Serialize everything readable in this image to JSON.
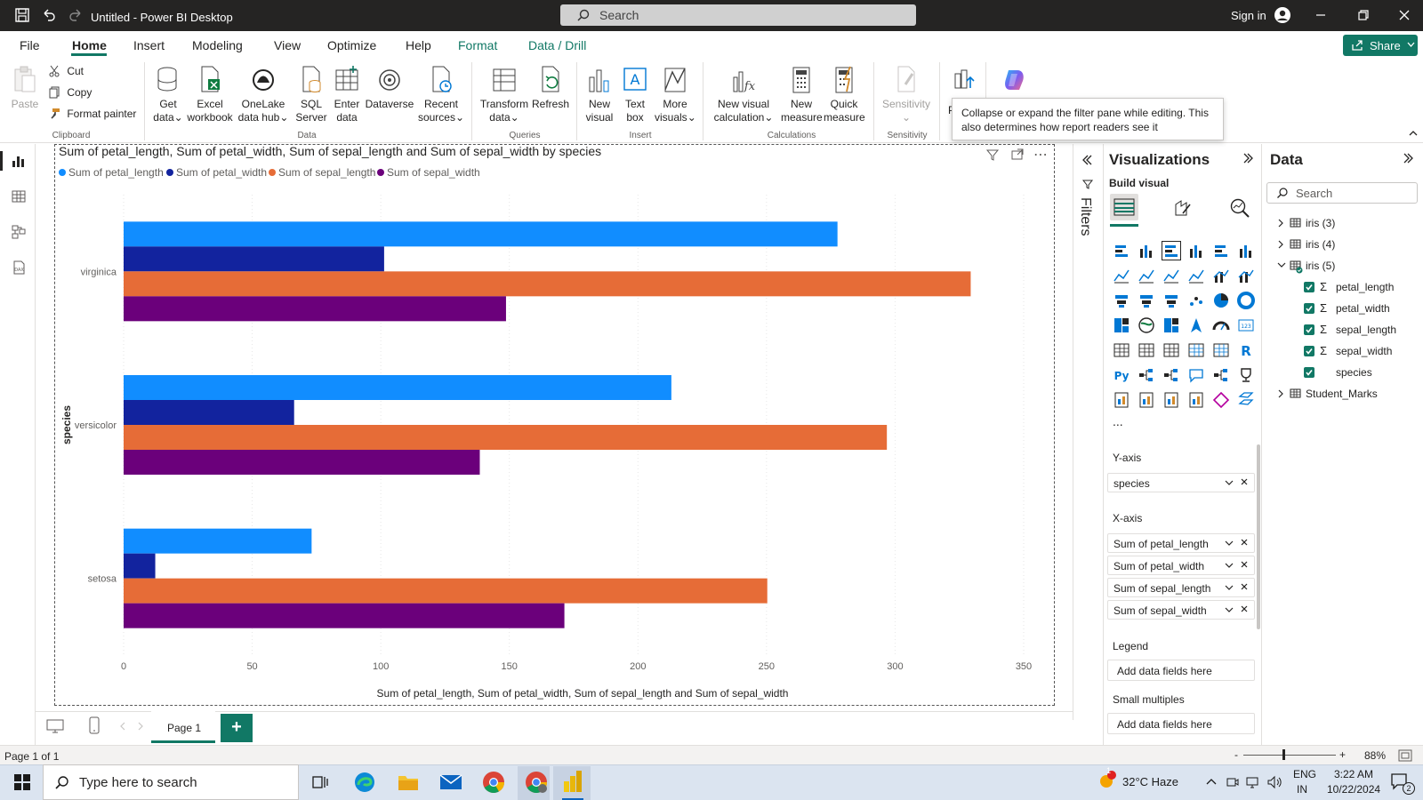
{
  "window": {
    "title": "Untitled - Power BI Desktop",
    "search_placeholder": "Search",
    "sign_in": "Sign in"
  },
  "tabs": {
    "file": "File",
    "home": "Home",
    "insert": "Insert",
    "modeling": "Modeling",
    "view": "View",
    "optimize": "Optimize",
    "help": "Help",
    "format": "Format",
    "data_drill": "Data / Drill",
    "share": "Share"
  },
  "ribbon": {
    "paste": "Paste",
    "cut": "Cut",
    "copy": "Copy",
    "format_painter": "Format painter",
    "group_clipboard": "Clipboard",
    "get_data": [
      "Get",
      "data"
    ],
    "excel": [
      "Excel",
      "workbook"
    ],
    "onelake": [
      "OneLake",
      "data hub"
    ],
    "sql": [
      "SQL",
      "Server"
    ],
    "enter_data": [
      "Enter",
      "data"
    ],
    "dataverse": "Dataverse",
    "recent": [
      "Recent",
      "sources"
    ],
    "group_data": "Data",
    "transform": [
      "Transform",
      "data"
    ],
    "refresh": "Refresh",
    "group_queries": "Queries",
    "new_visual": [
      "New",
      "visual"
    ],
    "text_box": [
      "Text",
      "box"
    ],
    "more_visuals": [
      "More",
      "visuals"
    ],
    "group_insert": "Insert",
    "new_visual_calc": [
      "New visual",
      "calculation"
    ],
    "new_measure": [
      "New",
      "measure"
    ],
    "quick_measure": [
      "Quick",
      "measure"
    ],
    "group_calculations": "Calculations",
    "sensitivity": "Sensitivity",
    "group_sensitivity": "Sensitivity",
    "publish_letter": "P"
  },
  "tooltip": {
    "line1": "Collapse or expand the filter pane while editing. This",
    "line2": "also determines how report readers see it"
  },
  "visual": {
    "title": "Sum of petal_length, Sum of petal_width, Sum of sepal_length and Sum of sepal_width by species",
    "legend": [
      {
        "label": "Sum of petal_length",
        "color": "#118dff"
      },
      {
        "label": "Sum of petal_width",
        "color": "#12239e"
      },
      {
        "label": "Sum of sepal_length",
        "color": "#e66c37"
      },
      {
        "label": "Sum of sepal_width",
        "color": "#6b007b"
      }
    ]
  },
  "chart_data": {
    "type": "bar",
    "orientation": "horizontal",
    "title": "Sum of petal_length, Sum of petal_width, Sum of sepal_length and Sum of sepal_width by species",
    "categories": [
      "virginica",
      "versicolor",
      "setosa"
    ],
    "series": [
      {
        "name": "Sum of petal_length",
        "values": [
          277.6,
          213.0,
          73.1
        ],
        "color": "#118dff"
      },
      {
        "name": "Sum of petal_width",
        "values": [
          101.3,
          66.3,
          12.3
        ],
        "color": "#12239e"
      },
      {
        "name": "Sum of sepal_length",
        "values": [
          329.4,
          296.8,
          250.3
        ],
        "color": "#e66c37"
      },
      {
        "name": "Sum of sepal_width",
        "values": [
          148.7,
          138.5,
          171.4
        ],
        "color": "#6b007b"
      }
    ],
    "xlabel": "Sum of petal_length, Sum of petal_width, Sum of sepal_length and Sum of sepal_width",
    "ylabel": "species",
    "xlim": [
      0,
      350
    ],
    "xticks": [
      0,
      50,
      100,
      150,
      200,
      250,
      300,
      350
    ],
    "grid": true,
    "legend_position": "top-left"
  },
  "filters": {
    "label": "Filters"
  },
  "visualizations": {
    "title": "Visualizations",
    "build_visual": "Build visual",
    "y_axis_label": "Y-axis",
    "y_axis_field": "species",
    "x_axis_label": "X-axis",
    "x_axis_fields": [
      "Sum of petal_length",
      "Sum of petal_width",
      "Sum of sepal_length",
      "Sum of sepal_width"
    ],
    "legend_label": "Legend",
    "legend_placeholder": "Add data fields here",
    "small_multiples_label": "Small multiples",
    "small_multiples_placeholder": "Add data fields here",
    "more": "..."
  },
  "data_pane": {
    "title": "Data",
    "search_placeholder": "Search",
    "tables": [
      "iris (3)",
      "iris (4)",
      "iris (5)",
      "Student_Marks"
    ],
    "fields": [
      {
        "label": "petal_length",
        "sigma": true
      },
      {
        "label": "petal_width",
        "sigma": true
      },
      {
        "label": "sepal_length",
        "sigma": true
      },
      {
        "label": "sepal_width",
        "sigma": true
      },
      {
        "label": "species",
        "sigma": false
      }
    ]
  },
  "pages": {
    "page1": "Page 1",
    "add": "+"
  },
  "status": {
    "page_count": "Page 1 of 1",
    "zoom_minus": "-",
    "zoom_plus": "+",
    "zoom": "88%"
  },
  "taskbar": {
    "search_placeholder": "Type here to search",
    "weather": "32°C  Haze",
    "lang1": "ENG",
    "lang2": "IN",
    "time": "3:22 AM",
    "date": "10/22/2024",
    "notif_count": "2",
    "weather_badge": "1"
  }
}
